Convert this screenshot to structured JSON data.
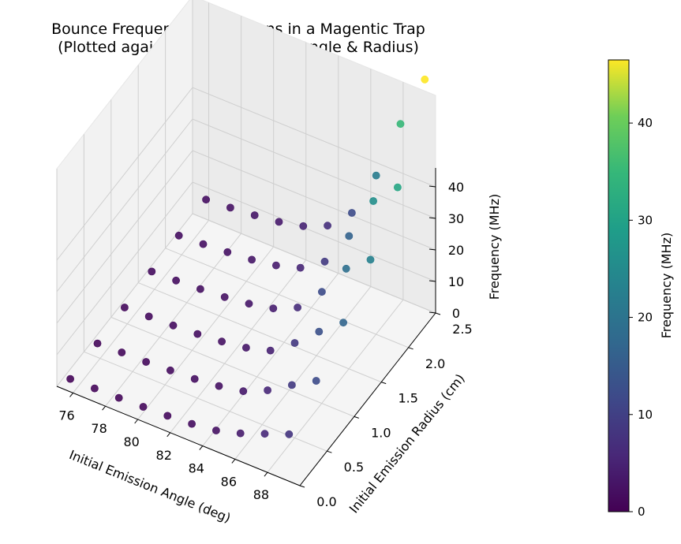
{
  "chart_data": {
    "type": "scatter",
    "title_line1": "Bounce Frequency of Electrons in a Magentic Trap",
    "title_line2": "(Plotted against Initial Emission Angle & Radius)",
    "xlabel": "Initial Emission Angle (deg)",
    "ylabel": "Initial Emission Radius (cm)",
    "zlabel": "Frequency (MHz)",
    "colorbar_label": "Frequency (MHz)",
    "xlim": [
      75,
      90
    ],
    "ylim": [
      0,
      2.5
    ],
    "zlim": [
      0,
      46
    ],
    "x_ticks": [
      76,
      78,
      80,
      82,
      84,
      86,
      88
    ],
    "y_ticks": [
      "0.0",
      "0.5",
      "1.0",
      "1.5",
      "2.0",
      "2.5"
    ],
    "z_ticks": [
      0,
      10,
      20,
      30,
      40
    ],
    "colorbar_ticks": [
      0,
      10,
      20,
      30,
      40
    ],
    "colorbar_range": [
      0,
      46.5
    ],
    "colormap": "viridis",
    "grid": true,
    "angles_deg": [
      75.5,
      77.0,
      78.5,
      80.0,
      81.5,
      83.0,
      84.5,
      86.0,
      87.5,
      89.0
    ],
    "radii_cm": [
      0.1,
      0.6,
      1.1,
      1.6,
      2.1,
      2.6
    ],
    "frequency_mhz": [
      [
        0.8,
        1.0,
        1.3,
        1.6,
        1.9,
        2.2
      ],
      [
        0.9,
        1.2,
        1.5,
        1.8,
        2.2,
        2.6
      ],
      [
        1.0,
        1.3,
        1.7,
        2.1,
        2.6,
        3.1
      ],
      [
        1.2,
        1.6,
        2.0,
        2.5,
        3.1,
        3.8
      ],
      [
        1.4,
        1.9,
        2.5,
        3.2,
        4.0,
        5.0
      ],
      [
        1.8,
        2.5,
        3.3,
        4.3,
        5.6,
        7.2
      ],
      [
        2.5,
        3.5,
        4.8,
        6.6,
        9.0,
        12.0
      ],
      [
        4.0,
        5.8,
        8.5,
        12.0,
        16.5,
        22.0
      ],
      [
        6.0,
        9.0,
        13.0,
        19.0,
        26.0,
        35.0
      ],
      [
        8.0,
        12.0,
        17.0,
        23.0,
        31.0,
        46.5
      ]
    ]
  }
}
